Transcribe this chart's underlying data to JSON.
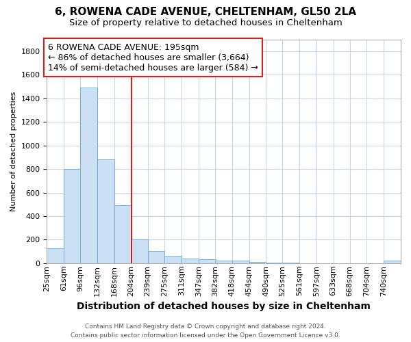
{
  "title1": "6, ROWENA CADE AVENUE, CHELTENHAM, GL50 2LA",
  "title2": "Size of property relative to detached houses in Cheltenham",
  "xlabel": "Distribution of detached houses by size in Cheltenham",
  "ylabel": "Number of detached properties",
  "bin_labels": [
    "25sqm",
    "61sqm",
    "96sqm",
    "132sqm",
    "168sqm",
    "204sqm",
    "239sqm",
    "275sqm",
    "311sqm",
    "347sqm",
    "382sqm",
    "418sqm",
    "454sqm",
    "490sqm",
    "525sqm",
    "561sqm",
    "597sqm",
    "633sqm",
    "668sqm",
    "704sqm",
    "740sqm"
  ],
  "bin_lefts": [
    25,
    61,
    96,
    132,
    168,
    204,
    239,
    275,
    311,
    347,
    382,
    418,
    454,
    490,
    525,
    561,
    597,
    633,
    668,
    704,
    740
  ],
  "bar_heights": [
    125,
    800,
    1490,
    880,
    490,
    205,
    105,
    65,
    40,
    35,
    25,
    20,
    10,
    5,
    3,
    2,
    1,
    1,
    0,
    0,
    20
  ],
  "bar_color": "#cce0f5",
  "bar_edge_color": "#6aaad4",
  "vline_x": 204,
  "vline_color": "#cc2222",
  "ylim_max": 1900,
  "yticks": [
    0,
    200,
    400,
    600,
    800,
    1000,
    1200,
    1400,
    1600,
    1800
  ],
  "annotation_line1": "6 ROWENA CADE AVENUE: 195sqm",
  "annotation_line2": "← 86% of detached houses are smaller (3,664)",
  "annotation_line3": "14% of semi-detached houses are larger (584) →",
  "ann_box_color": "#cc2222",
  "footer1": "Contains HM Land Registry data © Crown copyright and database right 2024.",
  "footer2": "Contains public sector information licensed under the Open Government Licence v3.0.",
  "bg_color": "#ffffff",
  "grid_color": "#c8d4e8",
  "title1_fontsize": 11,
  "title2_fontsize": 9.5,
  "ylabel_fontsize": 8,
  "xlabel_fontsize": 10,
  "tick_fontsize": 8,
  "xtick_fontsize": 8,
  "ann_fontsize": 9,
  "footer_fontsize": 6.5
}
